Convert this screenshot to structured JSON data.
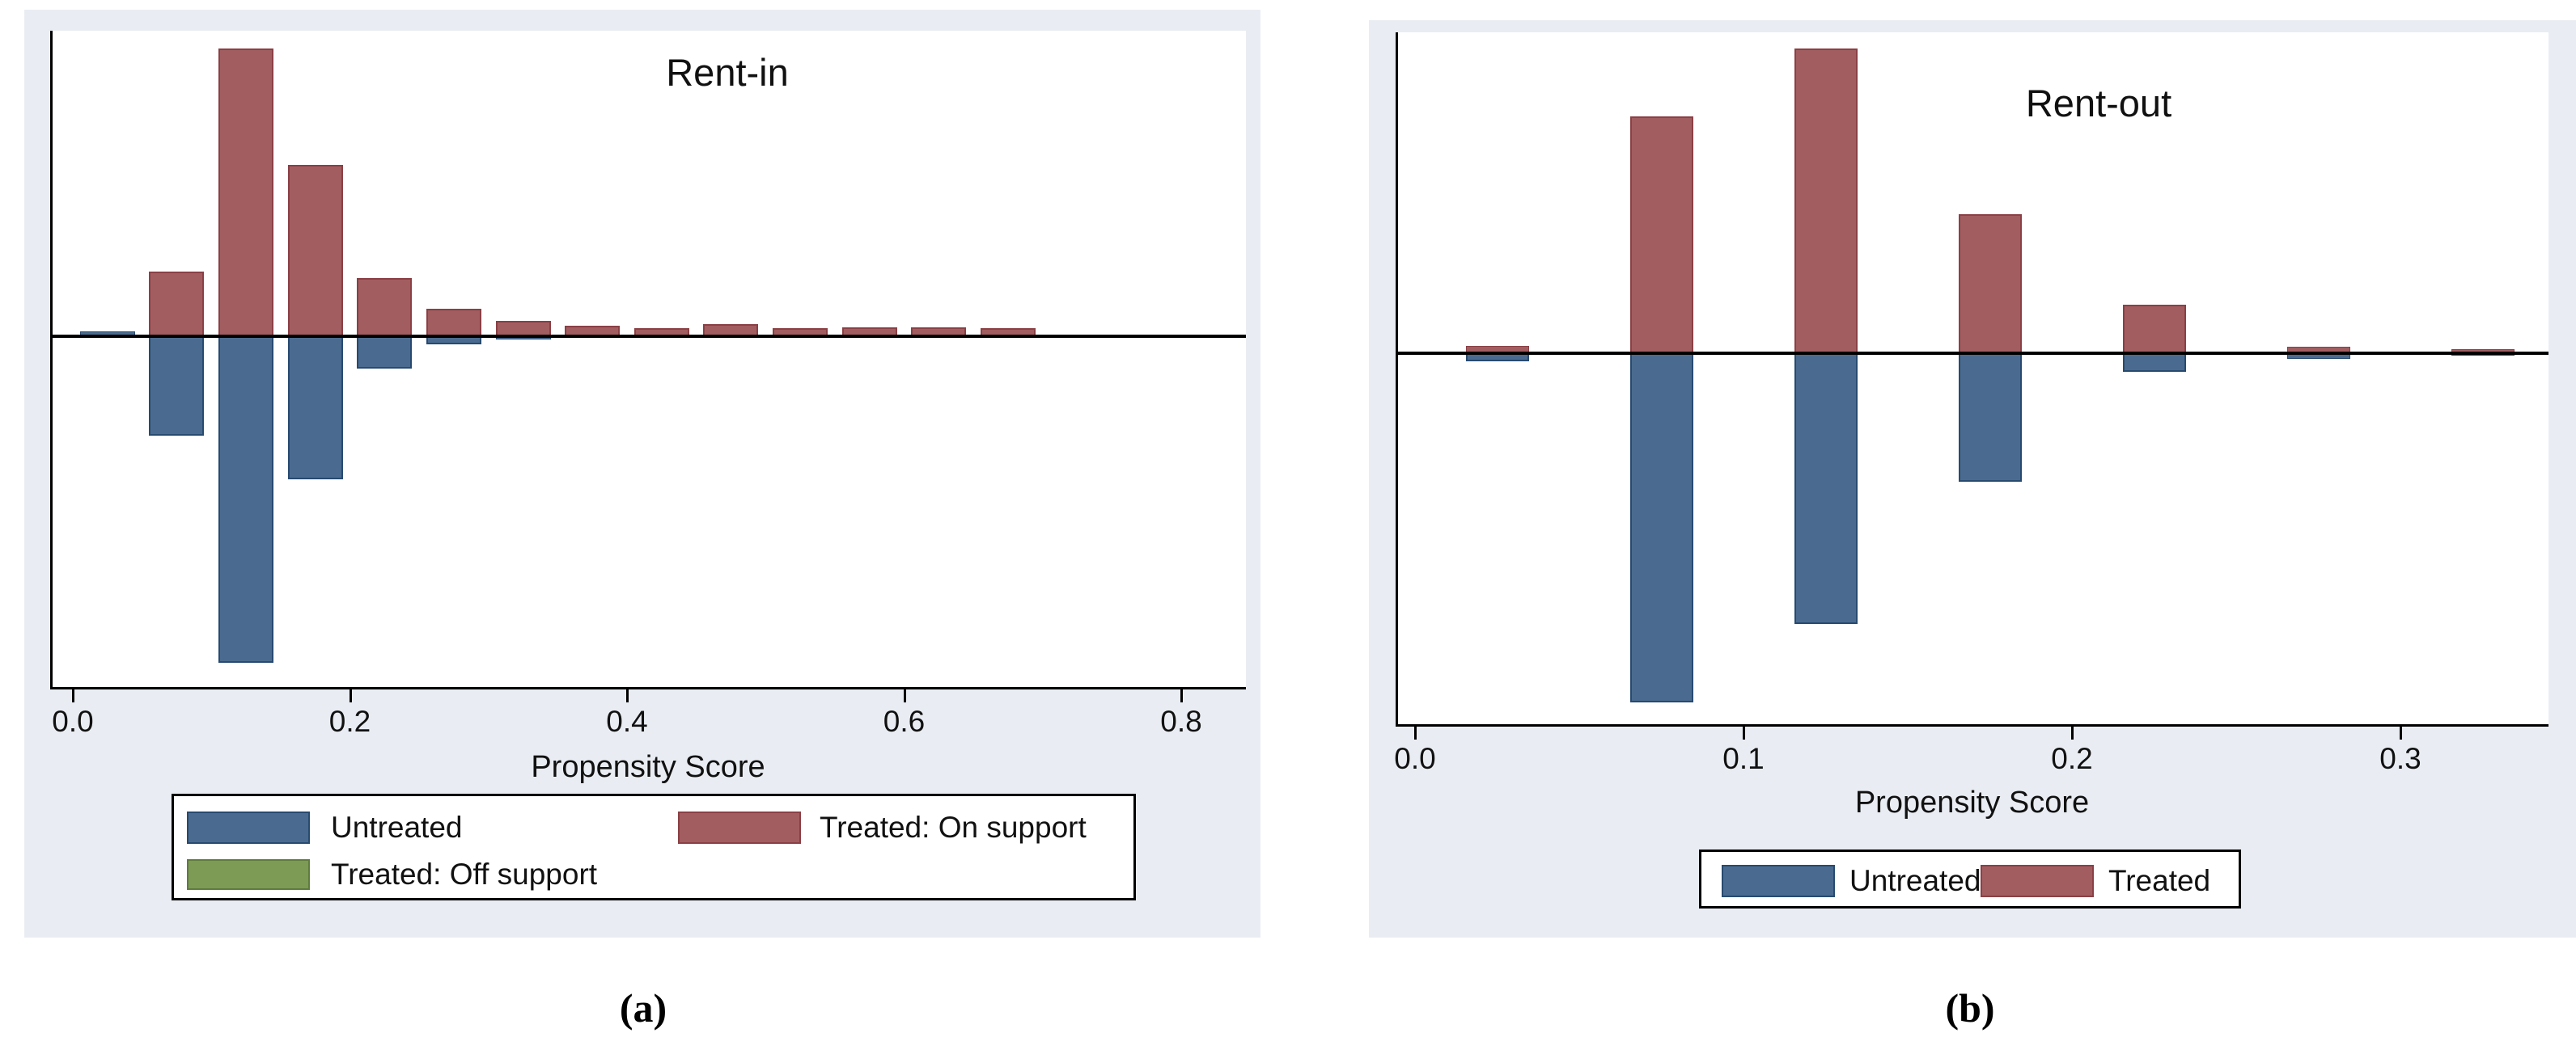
{
  "colors": {
    "graph_background": "#e9edf3",
    "plot_background": "#ffffff",
    "axis_line": "#000000",
    "untreated_fill": "#4a6b8f",
    "untreated_border": "#274a70",
    "treated_fill": "#a25d60",
    "treated_border": "#8a4045",
    "off_support_fill": "#7d9b55",
    "off_support_border": "#5f7c3d"
  },
  "chart_data": [
    {
      "id": "rent-in",
      "type": "bar",
      "title": "Rent-in",
      "xlabel": "Propensity Score",
      "caption": "(a)",
      "xlim": [
        -0.016,
        0.847
      ],
      "bin_width": 0.05,
      "grid": false,
      "legend_position": "below",
      "x_ticks": [
        {
          "v": 0.0,
          "label": "0.0"
        },
        {
          "v": 0.2,
          "label": "0.2"
        },
        {
          "v": 0.4,
          "label": "0.4"
        },
        {
          "v": 0.6,
          "label": "0.6"
        },
        {
          "v": 0.8,
          "label": "0.8"
        }
      ],
      "series_note": "treated drawn upward from zero line, untreated drawn downward; values are relative density heights",
      "bins": [
        {
          "x": 0.025,
          "treated": 0,
          "untreated": 6,
          "untreated_above_line": true
        },
        {
          "x": 0.075,
          "treated": 80,
          "untreated": 123
        },
        {
          "x": 0.125,
          "treated": 356,
          "untreated": 404
        },
        {
          "x": 0.175,
          "treated": 212,
          "untreated": 177
        },
        {
          "x": 0.225,
          "treated": 72,
          "untreated": 40
        },
        {
          "x": 0.275,
          "treated": 34,
          "untreated": 10
        },
        {
          "x": 0.325,
          "treated": 19,
          "untreated": 4
        },
        {
          "x": 0.375,
          "treated": 13,
          "untreated": 0
        },
        {
          "x": 0.425,
          "treated": 10,
          "untreated": 0
        },
        {
          "x": 0.475,
          "treated": 15,
          "untreated": 0
        },
        {
          "x": 0.525,
          "treated": 10,
          "untreated": 0
        },
        {
          "x": 0.575,
          "treated": 11,
          "untreated": 0
        },
        {
          "x": 0.625,
          "treated": 11,
          "untreated": 0
        },
        {
          "x": 0.675,
          "treated": 10,
          "untreated": 0
        }
      ],
      "legend": [
        {
          "label": "Untreated",
          "color_key": "untreated"
        },
        {
          "label": "Treated: On support",
          "color_key": "treated"
        },
        {
          "label": "Treated: Off support",
          "color_key": "off_support"
        }
      ]
    },
    {
      "id": "rent-out",
      "type": "bar",
      "title": "Rent-out",
      "xlabel": "Propensity Score",
      "caption": "(b)",
      "xlim": [
        -0.006,
        0.345
      ],
      "bin_width": 0.05,
      "grid": false,
      "legend_position": "below",
      "x_ticks": [
        {
          "v": 0.0,
          "label": "0.0"
        },
        {
          "v": 0.1,
          "label": "0.1"
        },
        {
          "v": 0.2,
          "label": "0.2"
        },
        {
          "v": 0.3,
          "label": "0.3"
        }
      ],
      "series_note": "treated drawn upward from zero line, untreated drawn downward; values are relative density heights",
      "bins": [
        {
          "x": 0.025,
          "treated": 9,
          "untreated": 10
        },
        {
          "x": 0.075,
          "treated": 293,
          "untreated": 432
        },
        {
          "x": 0.125,
          "treated": 377,
          "untreated": 335
        },
        {
          "x": 0.175,
          "treated": 172,
          "untreated": 159
        },
        {
          "x": 0.225,
          "treated": 60,
          "untreated": 23
        },
        {
          "x": 0.275,
          "treated": 8,
          "untreated": 7
        },
        {
          "x": 0.325,
          "treated": 5,
          "untreated": 3
        }
      ],
      "legend": [
        {
          "label": "Untreated",
          "color_key": "untreated"
        },
        {
          "label": "Treated",
          "color_key": "treated"
        }
      ]
    }
  ]
}
